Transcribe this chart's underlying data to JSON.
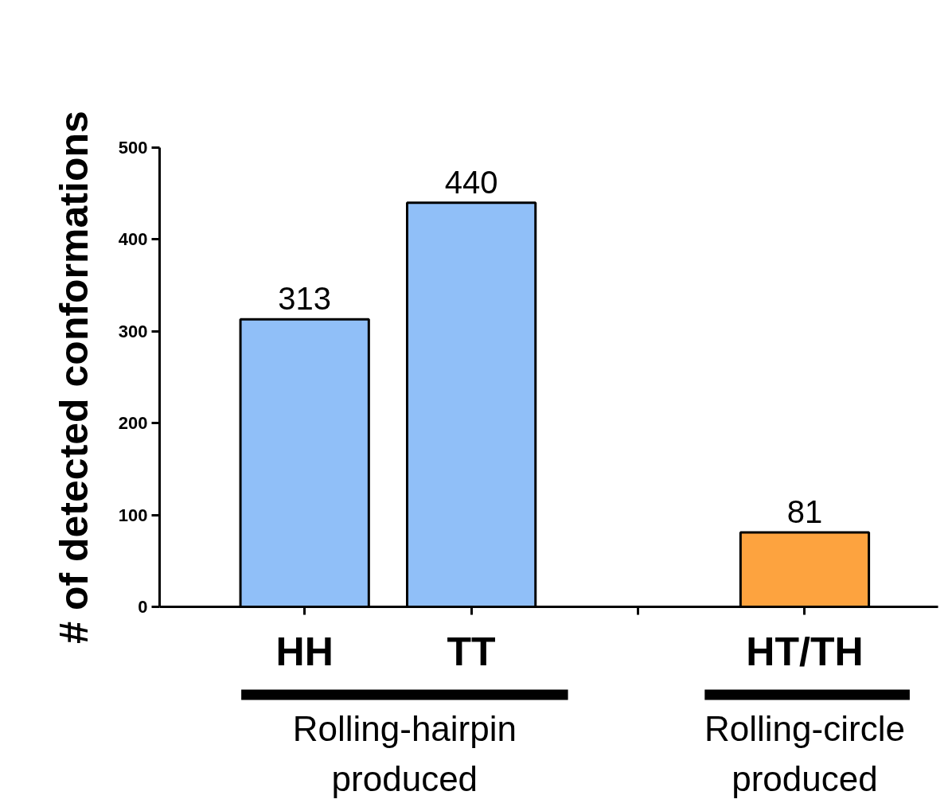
{
  "chart_data": {
    "type": "bar",
    "ylabel": "# of detected conformations",
    "categories": [
      "HH",
      "TT",
      null,
      "HT/TH"
    ],
    "values": [
      313,
      440,
      null,
      81
    ],
    "colors": [
      "#90bff8",
      "#90bff8",
      null,
      "#fda33f"
    ],
    "ylim": [
      0,
      500
    ],
    "yticks": [
      0,
      100,
      200,
      300,
      400,
      500
    ],
    "data_labels": true,
    "grid": false,
    "annotations": [
      "Rolling-hairpin produced",
      "Rolling-circle produced"
    ]
  }
}
